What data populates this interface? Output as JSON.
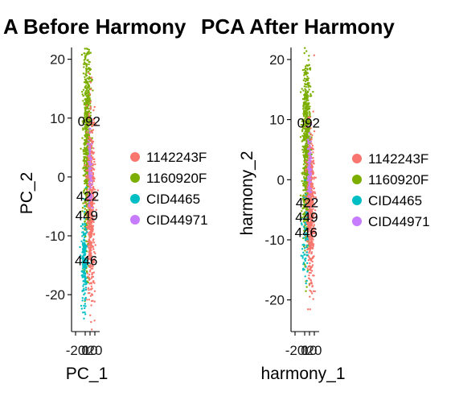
{
  "chart_data": [
    {
      "type": "scatter",
      "title": "A Before Harmony",
      "xlabel": "PC_1",
      "ylabel": "PC_2",
      "xticks": [
        "-20",
        "0",
        "10",
        "20"
      ],
      "yticks": [
        "20",
        "10",
        "0",
        "-10",
        "-20"
      ],
      "xlim": [
        -25,
        30
      ],
      "ylim": [
        -26,
        22
      ],
      "grid": false,
      "legend_position": "right",
      "series": [
        {
          "name": "1142243F",
          "color": "#F8766D",
          "center": [
            12,
            -5
          ],
          "spread": [
            4,
            8
          ],
          "n": 500
        },
        {
          "name": "1160920F",
          "color": "#7CAE00",
          "center": [
            4,
            6
          ],
          "spread": [
            4,
            9
          ],
          "n": 750
        },
        {
          "name": "CID4465",
          "color": "#00BFC4",
          "center": [
            -2,
            -15
          ],
          "spread": [
            3,
            4
          ],
          "n": 180
        },
        {
          "name": "CID44971",
          "color": "#C77CFF",
          "center": [
            10,
            1
          ],
          "spread": [
            2,
            3
          ],
          "n": 90
        }
      ],
      "cluster_labels": [
        {
          "text": "092",
          "x": 8,
          "y": 9.5
        },
        {
          "text": "422",
          "x": 5,
          "y": -3.2
        },
        {
          "text": "449",
          "x": 3,
          "y": -6.5
        },
        {
          "text": "446",
          "x": 2,
          "y": -14.2
        }
      ]
    },
    {
      "type": "scatter",
      "title": "PCA After Harmony",
      "xlabel": "harmony_1",
      "ylabel": "harmony_2",
      "xticks": [
        "-20",
        "0",
        "10",
        "20"
      ],
      "yticks": [
        "20",
        "10",
        "0",
        "-10",
        "-20"
      ],
      "xlim": [
        -25,
        30
      ],
      "ylim": [
        -25,
        22
      ],
      "grid": false,
      "legend_position": "right",
      "series": [
        {
          "name": "1142243F",
          "color": "#F8766D",
          "center": [
            12,
            -5
          ],
          "spread": [
            4,
            6
          ],
          "n": 500
        },
        {
          "name": "1160920F",
          "color": "#7CAE00",
          "center": [
            4,
            5
          ],
          "spread": [
            4,
            8
          ],
          "n": 750
        },
        {
          "name": "CID4465",
          "color": "#00BFC4",
          "center": [
            1,
            -10
          ],
          "spread": [
            3,
            4
          ],
          "n": 60
        },
        {
          "name": "CID44971",
          "color": "#C77CFF",
          "center": [
            10,
            2
          ],
          "spread": [
            2,
            3
          ],
          "n": 90
        }
      ],
      "cluster_labels": [
        {
          "text": "092",
          "x": 8,
          "y": 9.5
        },
        {
          "text": "422",
          "x": 5,
          "y": -3.8
        },
        {
          "text": "449",
          "x": 4,
          "y": -6.2
        },
        {
          "text": "446",
          "x": 3,
          "y": -8.7
        }
      ]
    }
  ]
}
